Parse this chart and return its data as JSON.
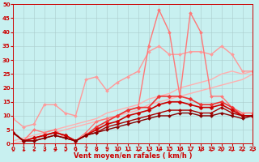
{
  "xlabel": "Vent moyen/en rafales ( km/h )",
  "xlim": [
    0,
    23
  ],
  "ylim": [
    0,
    50
  ],
  "xticks": [
    0,
    1,
    2,
    3,
    4,
    5,
    6,
    7,
    8,
    9,
    10,
    11,
    12,
    13,
    14,
    15,
    16,
    17,
    18,
    19,
    20,
    21,
    22,
    23
  ],
  "yticks": [
    0,
    5,
    10,
    15,
    20,
    25,
    30,
    35,
    40,
    45,
    50
  ],
  "background_color": "#c8f0f0",
  "series": [
    {
      "name": "light_pink_diagonal1",
      "color": "#ffb0b0",
      "linewidth": 1.0,
      "marker": null,
      "values": [
        1,
        2,
        3,
        4,
        5,
        6,
        7,
        8,
        9,
        11,
        12,
        13,
        14,
        16,
        17,
        18,
        20,
        21,
        22,
        23,
        25,
        26,
        25,
        26
      ]
    },
    {
      "name": "light_pink_diagonal2",
      "color": "#ffb0b0",
      "linewidth": 1.0,
      "marker": null,
      "values": [
        0,
        1,
        2,
        3,
        4,
        5,
        6,
        7,
        8,
        9,
        10,
        11,
        12,
        14,
        15,
        16,
        17,
        18,
        19,
        20,
        21,
        22,
        23,
        25
      ]
    },
    {
      "name": "light_pink_jagged",
      "color": "#ff9999",
      "linewidth": 1.0,
      "marker": "D",
      "markersize": 2.0,
      "values": [
        9,
        6,
        7,
        14,
        14,
        11,
        10,
        23,
        24,
        19,
        22,
        24,
        26,
        33,
        35,
        32,
        32,
        33,
        33,
        32,
        35,
        32,
        26,
        26
      ]
    },
    {
      "name": "pink_very_jagged",
      "color": "#ff7777",
      "linewidth": 1.0,
      "marker": "D",
      "markersize": 2.0,
      "values": [
        4,
        1,
        5,
        4,
        5,
        2,
        1,
        4,
        8,
        9,
        10,
        12,
        13,
        35,
        48,
        40,
        17,
        47,
        40,
        17,
        17,
        13,
        11,
        11
      ]
    },
    {
      "name": "red_medium_hump",
      "color": "#ee3333",
      "linewidth": 1.2,
      "marker": "D",
      "markersize": 2.5,
      "values": [
        4,
        1,
        2,
        3,
        4,
        3,
        1,
        3,
        6,
        8,
        10,
        12,
        13,
        13,
        17,
        17,
        17,
        16,
        14,
        14,
        15,
        13,
        10,
        10
      ]
    },
    {
      "name": "dark_red_hump",
      "color": "#cc0000",
      "linewidth": 1.2,
      "marker": "D",
      "markersize": 2.5,
      "values": [
        4,
        1,
        2,
        3,
        4,
        3,
        1,
        3,
        5,
        7,
        8,
        10,
        11,
        12,
        14,
        15,
        15,
        14,
        13,
        13,
        14,
        12,
        10,
        10
      ]
    },
    {
      "name": "dark_red_lower",
      "color": "#aa0000",
      "linewidth": 1.0,
      "marker": "D",
      "markersize": 2.0,
      "values": [
        4,
        1,
        1,
        2,
        3,
        2,
        1,
        3,
        4,
        6,
        7,
        8,
        9,
        10,
        11,
        12,
        12,
        12,
        11,
        11,
        13,
        11,
        10,
        10
      ]
    },
    {
      "name": "dark_red_flat",
      "color": "#880000",
      "linewidth": 1.0,
      "marker": "D",
      "markersize": 2.0,
      "values": [
        4,
        1,
        1,
        2,
        3,
        2,
        1,
        3,
        4,
        5,
        6,
        7,
        8,
        9,
        10,
        10,
        11,
        11,
        10,
        10,
        11,
        10,
        9,
        10
      ]
    }
  ],
  "arrow_color": "#cc0000"
}
